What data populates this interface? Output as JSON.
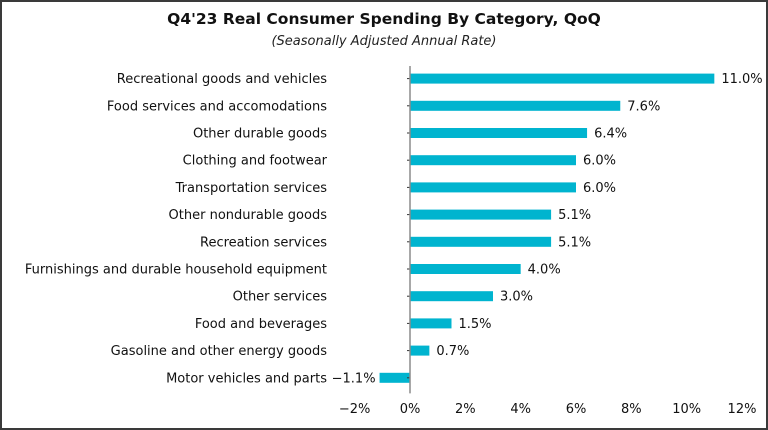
{
  "chart_data": {
    "type": "bar",
    "orientation": "horizontal",
    "title": "Q4'23 Real Consumer Spending By Category, QoQ",
    "subtitle": "(Seasonally Adjusted Annual Rate)",
    "categories": [
      "Recreational goods and vehicles",
      "Food services and accomodations",
      "Other durable goods",
      "Clothing and footwear",
      "Transportation services",
      "Other nondurable goods",
      "Recreation services",
      "Furnishings and durable household equipment",
      "Other services",
      "Food and beverages",
      "Gasoline and other energy goods",
      "Motor vehicles and parts"
    ],
    "values": [
      11.0,
      7.6,
      6.4,
      6.0,
      6.0,
      5.1,
      5.1,
      4.0,
      3.0,
      1.5,
      0.7,
      -1.1
    ],
    "data_labels": [
      "11.0%",
      "7.6%",
      "6.4%",
      "6.0%",
      "6.0%",
      "5.1%",
      "5.1%",
      "4.0%",
      "3.0%",
      "1.5%",
      "0.7%",
      "−1.1%"
    ],
    "xlabel": "",
    "ylabel": "",
    "xlim": [
      -2,
      12
    ],
    "xticks": [
      -2,
      0,
      2,
      4,
      6,
      8,
      10,
      12
    ],
    "xtick_labels": [
      "−2%",
      "0%",
      "2%",
      "4%",
      "6%",
      "8%",
      "10%",
      "12%"
    ],
    "grid": false,
    "legend": "none",
    "colors": {
      "bar": "#00b4cf",
      "axis": "#8c8c8c",
      "border": "#3a3a3a"
    }
  }
}
